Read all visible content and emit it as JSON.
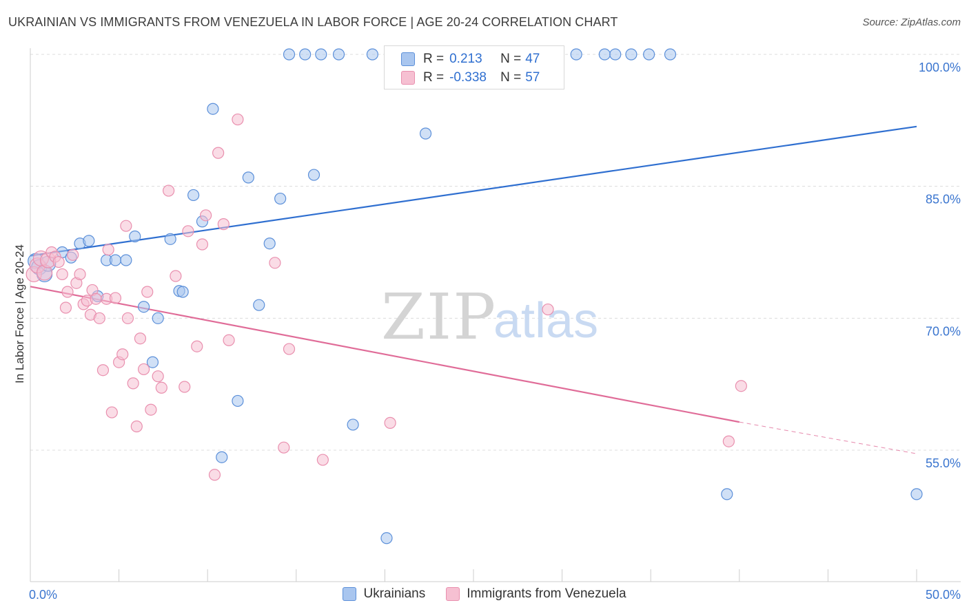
{
  "title": "UKRAINIAN VS IMMIGRANTS FROM VENEZUELA IN LABOR FORCE | AGE 20-24 CORRELATION CHART",
  "source": "Source: ZipAtlas.com",
  "watermark": {
    "zip": "ZIP",
    "atlas": "atlas"
  },
  "legend_stats": [
    {
      "r_label": "R = ",
      "r_value": "0.213",
      "n_label": "N = ",
      "n_value": "47"
    },
    {
      "r_label": "R = ",
      "r_value": "-0.338",
      "n_label": "N = ",
      "n_value": "57"
    }
  ],
  "chart_data": {
    "type": "scatter",
    "title": "UKRAINIAN VS IMMIGRANTS FROM VENEZUELA IN LABOR FORCE | AGE 20-24 CORRELATION CHART",
    "xlabel": "",
    "ylabel": "In Labor Force | Age 20-24",
    "xlim": [
      0,
      50
    ],
    "ylim": [
      42,
      101.5
    ],
    "x_tick_labels": [
      {
        "value": 0,
        "label": "0.0%"
      },
      {
        "value": 50,
        "label": "50.0%"
      }
    ],
    "y_tick_labels": [
      {
        "value": 55,
        "label": "55.0%"
      },
      {
        "value": 70,
        "label": "70.0%"
      },
      {
        "value": 85,
        "label": "85.0%"
      },
      {
        "value": 100,
        "label": "100.0%"
      }
    ],
    "grid": true,
    "legend": "bottom-center",
    "series": [
      {
        "name": "Ukrainians",
        "color": "#5b8fd9",
        "fill": "#a9c6ef",
        "trend": {
          "x": [
            0,
            50
          ],
          "y": [
            77.1,
            91.8
          ],
          "color": "#2f6fd0"
        },
        "points": [
          [
            0.3,
            76.5
          ],
          [
            0.5,
            75.8
          ],
          [
            0.8,
            75.0
          ],
          [
            1.0,
            76.2
          ],
          [
            1.8,
            77.5
          ],
          [
            2.3,
            76.9
          ],
          [
            2.8,
            78.5
          ],
          [
            3.3,
            78.8
          ],
          [
            3.8,
            72.5
          ],
          [
            4.3,
            76.6
          ],
          [
            4.8,
            76.6
          ],
          [
            5.4,
            76.6
          ],
          [
            5.9,
            79.3
          ],
          [
            6.4,
            71.3
          ],
          [
            6.9,
            65.0
          ],
          [
            7.2,
            70.0
          ],
          [
            7.9,
            79.0
          ],
          [
            8.4,
            73.1
          ],
          [
            8.6,
            73.0
          ],
          [
            9.2,
            84.0
          ],
          [
            9.7,
            81.0
          ],
          [
            10.3,
            93.8
          ],
          [
            10.8,
            54.2
          ],
          [
            11.7,
            60.6
          ],
          [
            12.3,
            86.0
          ],
          [
            12.9,
            71.5
          ],
          [
            13.5,
            78.5
          ],
          [
            14.1,
            83.6
          ],
          [
            14.6,
            100.0
          ],
          [
            15.5,
            100.0
          ],
          [
            16.0,
            86.3
          ],
          [
            16.4,
            100.0
          ],
          [
            17.4,
            100.0
          ],
          [
            18.2,
            57.9
          ],
          [
            19.3,
            100.0
          ],
          [
            20.1,
            45.0
          ],
          [
            22.3,
            91.0
          ],
          [
            23.3,
            100.0
          ],
          [
            25.2,
            100.0
          ],
          [
            30.8,
            100.0
          ],
          [
            32.4,
            100.0
          ],
          [
            33.0,
            100.0
          ],
          [
            33.9,
            100.0
          ],
          [
            34.9,
            100.0
          ],
          [
            36.1,
            100.0
          ],
          [
            39.3,
            50.0
          ],
          [
            50.0,
            50.0
          ]
        ]
      },
      {
        "name": "Immigrants from Venezuela",
        "color": "#e98fae",
        "fill": "#f6c0d2",
        "trend": {
          "x": [
            0,
            40
          ],
          "y": [
            73.6,
            58.2
          ],
          "color": "#e06c98"
        },
        "trend_dashed": {
          "x": [
            40,
            50
          ],
          "y": [
            58.2,
            54.6
          ]
        },
        "points": [
          [
            0.2,
            75.0
          ],
          [
            0.4,
            76.0
          ],
          [
            0.6,
            76.8
          ],
          [
            0.8,
            75.2
          ],
          [
            1.0,
            76.6
          ],
          [
            1.2,
            77.5
          ],
          [
            1.4,
            77.0
          ],
          [
            1.6,
            76.4
          ],
          [
            1.8,
            75.0
          ],
          [
            2.0,
            71.2
          ],
          [
            2.1,
            73.0
          ],
          [
            2.4,
            77.2
          ],
          [
            2.6,
            74.0
          ],
          [
            2.8,
            75.0
          ],
          [
            3.0,
            71.6
          ],
          [
            3.2,
            72.0
          ],
          [
            3.4,
            70.4
          ],
          [
            3.5,
            73.2
          ],
          [
            3.7,
            72.2
          ],
          [
            3.9,
            70.0
          ],
          [
            4.1,
            64.1
          ],
          [
            4.3,
            72.2
          ],
          [
            4.4,
            77.8
          ],
          [
            4.6,
            59.3
          ],
          [
            4.8,
            72.3
          ],
          [
            5.0,
            65.0
          ],
          [
            5.2,
            65.9
          ],
          [
            5.4,
            80.5
          ],
          [
            5.5,
            70.0
          ],
          [
            5.8,
            62.6
          ],
          [
            6.0,
            57.7
          ],
          [
            6.2,
            67.7
          ],
          [
            6.4,
            64.2
          ],
          [
            6.6,
            73.0
          ],
          [
            6.8,
            59.6
          ],
          [
            7.2,
            63.4
          ],
          [
            7.4,
            62.1
          ],
          [
            7.8,
            84.5
          ],
          [
            8.2,
            74.8
          ],
          [
            8.7,
            62.2
          ],
          [
            8.9,
            79.9
          ],
          [
            9.4,
            66.8
          ],
          [
            9.7,
            78.4
          ],
          [
            9.9,
            81.7
          ],
          [
            10.4,
            52.2
          ],
          [
            10.6,
            88.8
          ],
          [
            10.9,
            80.7
          ],
          [
            11.2,
            67.5
          ],
          [
            11.7,
            92.6
          ],
          [
            13.8,
            76.3
          ],
          [
            14.3,
            55.3
          ],
          [
            14.6,
            66.5
          ],
          [
            16.5,
            53.9
          ],
          [
            20.3,
            58.1
          ],
          [
            29.2,
            71.0
          ],
          [
            39.4,
            56.0
          ],
          [
            40.1,
            62.3
          ]
        ]
      }
    ]
  }
}
